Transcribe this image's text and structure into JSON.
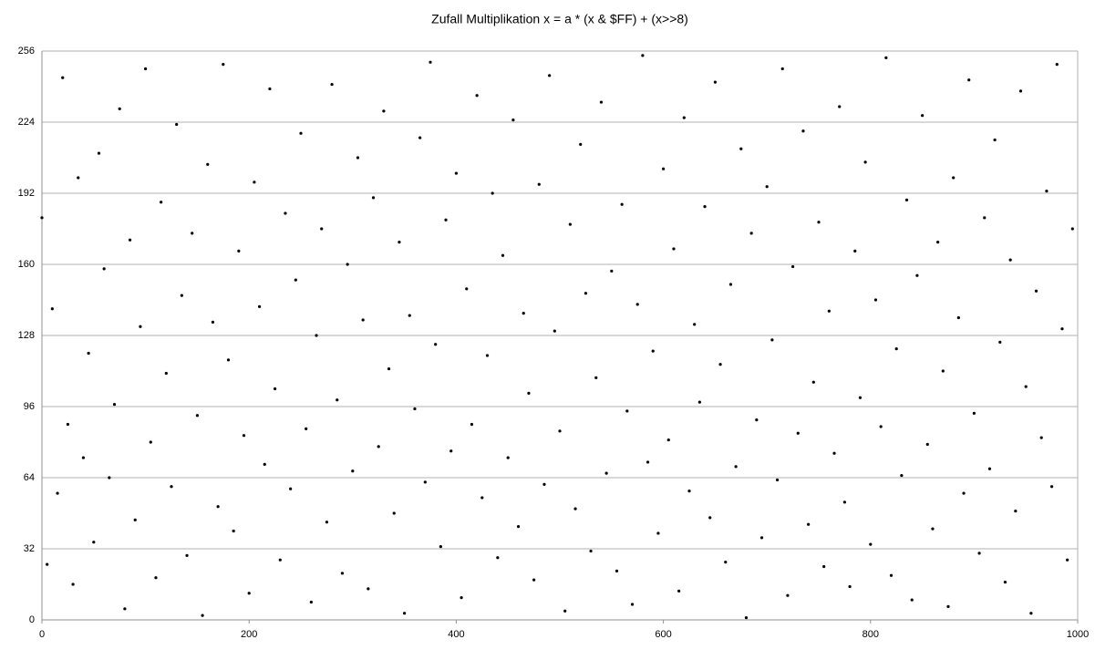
{
  "chart_data": {
    "type": "scatter",
    "title": "Zufall Multiplikation x = a * (x & $FF) + (x>>8)",
    "color": "#000000",
    "grid": true,
    "xlim": [
      0,
      1000
    ],
    "xticks": [
      0,
      200,
      400,
      600,
      800,
      1000
    ],
    "ylim": [
      0,
      256
    ],
    "yticks": [
      0,
      32,
      64,
      96,
      128,
      160,
      192,
      224,
      256
    ],
    "x": [
      0,
      5,
      10,
      15,
      20,
      25,
      30,
      35,
      40,
      45,
      50,
      55,
      60,
      65,
      70,
      75,
      80,
      85,
      90,
      95,
      100,
      105,
      110,
      115,
      120,
      125,
      130,
      135,
      140,
      145,
      150,
      155,
      160,
      165,
      170,
      175,
      180,
      185,
      190,
      195,
      200,
      205,
      210,
      215,
      220,
      225,
      230,
      235,
      240,
      245,
      250,
      255,
      260,
      265,
      270,
      275,
      280,
      285,
      290,
      295,
      300,
      305,
      310,
      315,
      320,
      325,
      330,
      335,
      340,
      345,
      350,
      355,
      360,
      365,
      370,
      375,
      380,
      385,
      390,
      395,
      400,
      405,
      410,
      415,
      420,
      425,
      430,
      435,
      440,
      445,
      450,
      455,
      460,
      465,
      470,
      475,
      480,
      485,
      490,
      495,
      500,
      505,
      510,
      515,
      520,
      525,
      530,
      535,
      540,
      545,
      550,
      555,
      560,
      565,
      570,
      575,
      580,
      585,
      590,
      595,
      600,
      605,
      610,
      615,
      620,
      625,
      630,
      635,
      640,
      645,
      650,
      655,
      660,
      665,
      670,
      675,
      680,
      685,
      690,
      695,
      700,
      705,
      710,
      715,
      720,
      725,
      730,
      735,
      740,
      745,
      750,
      755,
      760,
      765,
      770,
      775,
      780,
      785,
      790,
      795,
      800,
      805,
      810,
      815,
      820,
      825,
      830,
      835,
      840,
      845,
      850,
      855,
      860,
      865,
      870,
      875,
      880,
      885,
      890,
      895,
      900,
      905,
      910,
      915,
      920,
      925,
      930,
      935,
      940,
      945,
      950,
      955,
      960,
      965,
      970,
      975,
      980,
      985,
      990,
      995
    ],
    "values": [
      181,
      25,
      140,
      57,
      244,
      88,
      16,
      199,
      73,
      120,
      35,
      210,
      158,
      64,
      97,
      230,
      5,
      171,
      45,
      132,
      248,
      80,
      19,
      188,
      111,
      60,
      223,
      146,
      29,
      174,
      92,
      2,
      205,
      134,
      51,
      250,
      117,
      40,
      166,
      83,
      12,
      197,
      141,
      70,
      239,
      104,
      27,
      183,
      59,
      153,
      219,
      86,
      8,
      128,
      176,
      44,
      241,
      99,
      21,
      160,
      67,
      208,
      135,
      14,
      190,
      78,
      229,
      113,
      48,
      170,
      3,
      137,
      95,
      217,
      62,
      251,
      124,
      33,
      180,
      76,
      201,
      10,
      149,
      88,
      236,
      55,
      119,
      192,
      28,
      164,
      73,
      225,
      42,
      138,
      102,
      18,
      196,
      61,
      245,
      130,
      85,
      4,
      178,
      50,
      214,
      147,
      31,
      109,
      233,
      66,
      157,
      22,
      187,
      94,
      7,
      142,
      254,
      71,
      121,
      39,
      203,
      81,
      167,
      13,
      226,
      58,
      133,
      98,
      186,
      46,
      242,
      115,
      26,
      151,
      69,
      212,
      1,
      174,
      90,
      37,
      195,
      126,
      63,
      248,
      11,
      159,
      84,
      220,
      43,
      107,
      179,
      24,
      139,
      75,
      231,
      53,
      15,
      166,
      100,
      206,
      34,
      144,
      87,
      253,
      20,
      122,
      65,
      189,
      9,
      155,
      227,
      79,
      41,
      170,
      112,
      6,
      199,
      136,
      57,
      243,
      93,
      30,
      181,
      68,
      216,
      125,
      17,
      162,
      49,
      238,
      105,
      3,
      148,
      82,
      193,
      60,
      250,
      131,
      27,
      176
    ]
  }
}
